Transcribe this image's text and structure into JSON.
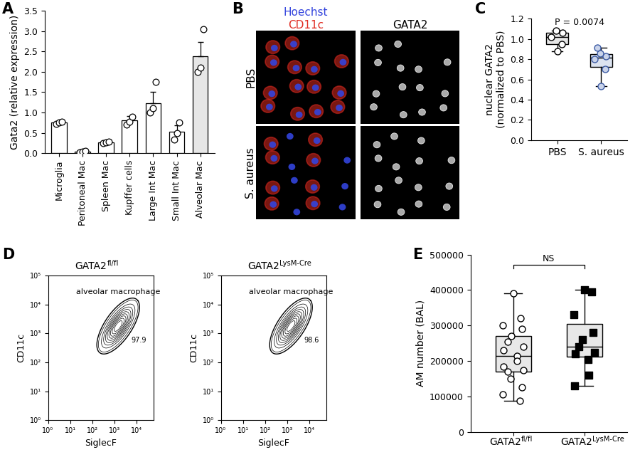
{
  "chart_data": [
    {
      "label": "A",
      "type": "bar",
      "ylabel": "Gata2 (relative expression)",
      "categories": [
        "Microglia",
        "Peritoneal Mac",
        "Spleen Mac",
        "Kupffer cells",
        "Large Int Mac",
        "Small Int Mac",
        "Alveolar Mac"
      ],
      "values": [
        0.75,
        0.03,
        0.27,
        0.8,
        1.22,
        0.52,
        2.38
      ],
      "errors": [
        0.03,
        0.02,
        0.02,
        0.12,
        0.28,
        0.17,
        0.35
      ],
      "points": [
        [
          0.72,
          0.75,
          0.77
        ],
        [
          0.02,
          0.03,
          0.05
        ],
        [
          0.25,
          0.27,
          0.28
        ],
        [
          0.7,
          0.78,
          0.9
        ],
        [
          1.0,
          1.1,
          1.75
        ],
        [
          0.33,
          0.5,
          0.75
        ],
        [
          2.0,
          2.1,
          3.05
        ]
      ],
      "colors": [
        "#ffffff",
        "#ffffff",
        "#ffffff",
        "#ffffff",
        "#ffffff",
        "#ffffff",
        "#e6e6e6"
      ],
      "ylim": [
        0,
        3.5
      ],
      "yticks": [
        {
          "value": 0,
          "label": "0.0"
        },
        {
          "value": 0.5,
          "label": "0.5"
        },
        {
          "value": 1.0,
          "label": "1.0"
        },
        {
          "value": 1.5,
          "label": "1.5"
        },
        {
          "value": 2.0,
          "label": "2.0"
        },
        {
          "value": 2.5,
          "label": "2.5"
        },
        {
          "value": 3.0,
          "label": "3.0"
        },
        {
          "value": 3.5,
          "label": "3.5"
        }
      ]
    },
    {
      "label": "B",
      "type": "image",
      "channels": [
        {
          "text": "Hoechst",
          "color": "#3344dd"
        },
        {
          "text": "CD11c",
          "color": "#e02a20"
        }
      ],
      "right_title": "GATA2",
      "rows": [
        "PBS",
        "S. aureus"
      ]
    },
    {
      "label": "C",
      "type": "box",
      "ylabel": "nuclear GATA2\n(normalized to PBS)",
      "categories": [
        "PBS",
        "S. aureus"
      ],
      "points": [
        [
          0.88,
          0.95,
          1.02,
          1.06,
          1.08
        ],
        [
          0.53,
          0.7,
          0.8,
          0.83,
          0.86,
          0.91
        ]
      ],
      "colors": [
        "#e6e6e6",
        "#dce3f0"
      ],
      "annotation": "P = 0.0074",
      "ylim": [
        0,
        1.2
      ],
      "yticks": [
        {
          "value": 0,
          "label": "0.0"
        },
        {
          "value": 0.2,
          "label": "0.2"
        },
        {
          "value": 0.4,
          "label": "0.4"
        },
        {
          "value": 0.6,
          "label": "0.6"
        },
        {
          "value": 0.8,
          "label": "0.8"
        },
        {
          "value": 1.0,
          "label": "1.0"
        },
        {
          "value": 1.2,
          "label": "1.2"
        }
      ]
    },
    {
      "label": "D",
      "type": "contour",
      "title": "GATA2fl/fl",
      "title_superscript": "fl/fl",
      "xlabel": "SiglecF",
      "ylabel": "CD11c",
      "log": true,
      "gate_label": "alveolar macrophage",
      "gate_percent": 97.9,
      "gate_center": [
        1500,
        1800
      ],
      "xlim": [
        1,
        60000
      ],
      "ylim": [
        1,
        100000
      ],
      "xticks": [
        {
          "value": 1,
          "label": "10⁰"
        },
        {
          "value": 10,
          "label": "10¹"
        },
        {
          "value": 100,
          "label": "10²"
        },
        {
          "value": 1000,
          "label": "10³"
        },
        {
          "value": 10000,
          "label": "10⁴"
        }
      ],
      "yticks": [
        {
          "value": 1,
          "label": "10⁰"
        },
        {
          "value": 10,
          "label": "10¹"
        },
        {
          "value": 100,
          "label": "10²"
        },
        {
          "value": 1000,
          "label": "10³"
        },
        {
          "value": 10000,
          "label": "10⁴"
        },
        {
          "value": 100000,
          "label": "10⁵"
        }
      ]
    },
    {
      "type": "contour",
      "title": "GATA2LysM-Cre",
      "title_superscript": "LysM-Cre",
      "xlabel": "SiglecF",
      "ylabel": "CD11c",
      "log": true,
      "gate_label": "alveolar macrophage",
      "gate_percent": 98.6,
      "gate_center": [
        1500,
        1800
      ],
      "xlim": [
        1,
        60000
      ],
      "ylim": [
        1,
        100000
      ],
      "xticks": [
        {
          "value": 1,
          "label": "10⁰"
        },
        {
          "value": 10,
          "label": "10¹"
        },
        {
          "value": 100,
          "label": "10²"
        },
        {
          "value": 1000,
          "label": "10³"
        },
        {
          "value": 10000,
          "label": "10⁴"
        }
      ],
      "yticks": [
        {
          "value": 1,
          "label": "10⁰"
        },
        {
          "value": 10,
          "label": "10¹"
        },
        {
          "value": 100,
          "label": "10²"
        },
        {
          "value": 1000,
          "label": "10³"
        },
        {
          "value": 10000,
          "label": "10⁴"
        },
        {
          "value": 100000,
          "label": "10⁵"
        }
      ]
    },
    {
      "label": "E",
      "type": "box",
      "ylabel": "AM number (BAL)",
      "categories": [
        "GATA2fl/fl",
        "GATA2LysM-Cre"
      ],
      "superscripts": [
        "fl/fl",
        "LysM-Cre"
      ],
      "points": [
        [
          390000,
          320000,
          300000,
          290000,
          270000,
          255000,
          240000,
          230000,
          215000,
          200000,
          185000,
          175000,
          170000,
          150000,
          125000,
          105000,
          88000
        ],
        [
          400000,
          395000,
          330000,
          280000,
          260000,
          240000,
          225000,
          220000,
          205000,
          160000,
          130000
        ]
      ],
      "colors": [
        "#e8e8e8",
        "#e8e8e8"
      ],
      "annotation": "NS",
      "ylim": [
        0,
        500000
      ],
      "yticks": [
        0,
        100000,
        200000,
        300000,
        400000,
        500000
      ]
    }
  ]
}
